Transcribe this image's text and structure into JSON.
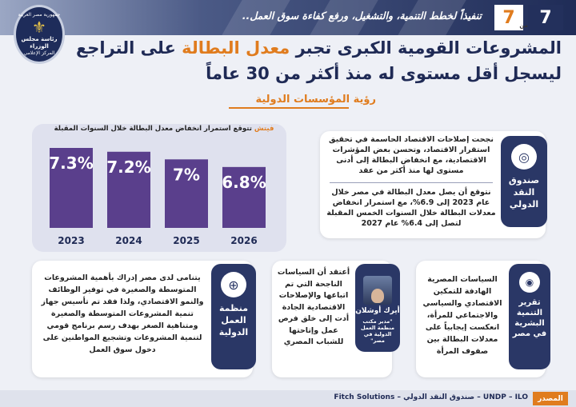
{
  "header": {
    "tagline": "تنفيذاً لخطط التنمية، والتشغيل، ورفع كفاءة سوق العمل..",
    "page_current": "7",
    "page_total": "7",
    "page_of": "من",
    "seal_top": "جمهورية مصر العربية",
    "seal_mid": "رئاسة مجلس الوزراء",
    "seal_bottom": "المركز الإعلامي"
  },
  "title": {
    "line1_part1": "المشروعات القومية الكبرى تجبر ",
    "line1_highlight": "معدل البطالة",
    "line1_part2": " على التراجع",
    "line2": "ليسجل أقل مستوى له منذ أكثر من 30 عاماً"
  },
  "subtitle": "رؤية المؤسسات الدولية",
  "chart_title_brand": "فيتش",
  "chart_title_rest": " تتوقع استمرار انخفاض معدل البطالة خلال السنوات المقبلة",
  "chart_data": {
    "type": "bar",
    "title": "فيتش تتوقع استمرار انخفاض معدل البطالة خلال السنوات المقبلة",
    "categories": [
      "2023",
      "2024",
      "2025",
      "2026"
    ],
    "values": [
      7.3,
      7.2,
      7,
      6.8
    ],
    "value_labels": [
      "7.3%",
      "7.2%",
      "7%",
      "6.8%"
    ],
    "colors": [
      "#5a3f8c",
      "#5a3f8c",
      "#5a3f8c",
      "#5a3f8c"
    ]
  },
  "imf": {
    "name": "صندوق النقد الدولي",
    "text1": "نجحت إصلاحات الاقتصاد الحاسمة في تحقيق استقرار الاقتصاد، وتحسن بعض المؤشرات الاقتصادية، مع انخفاض البطالة إلى أدنى مستوى لها منذ أكثر من عقد",
    "text2": "نتوقع أن يصل معدل البطالة في مصر خلال عام 2023 إلى 6.9%، مع استمرار انخفاض معدلات البطالة خلال السنوات الخمس المقبلة لتصل إلى 6.4% عام 2027"
  },
  "ilo": {
    "name": "منظمة العمل الدولية",
    "text": "يتنامى لدى مصر إدراك بأهمية المشروعات المتوسطة والصغيرة في توفير الوظائف والنمو الاقتصادي، ولذا فقد تم تأسيس جهاز تنمية المشروعات المتوسطة والصغيرة ومتناهية الصغر بهدف رسم برنامج قومي لتنمية المشروعات وتشجيع المواطنين على دخول سوق العمل"
  },
  "person": {
    "name": "أيرك أوشلان",
    "role": "\"مدير مكتب منظمة العمل الدولية في مصر\"",
    "quote": "أعتقد أن السياسات الناجحة التي تم اتباعها والإصلاحات الاقتصادية الجادة أدت إلى خلق فرص عمل وإتاحتها للشباب المصري"
  },
  "undp": {
    "name": "تقرير التنمية البشرية في مصر",
    "text": "السياسات المصرية الهادفة للتمكين الاقتصادي والسياسي والاجتماعي للمرأة، انعكست إيجابياً على معدلات البطالة بين صفوف المرأة"
  },
  "footer": {
    "label": "المصدر",
    "sources": "UNDP – ILO – صندوق النقد الدولي – Fitch Solutions"
  }
}
